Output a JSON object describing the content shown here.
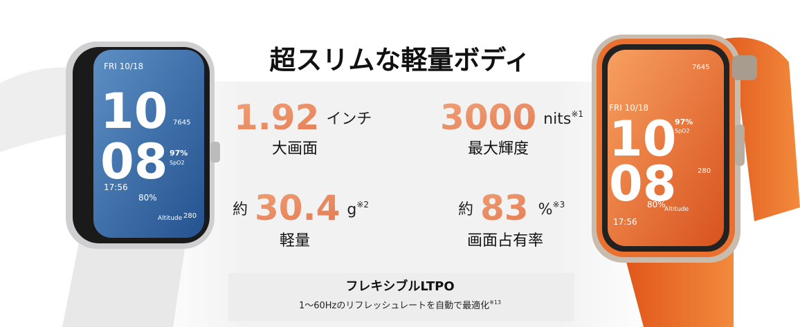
{
  "header": {
    "title": "超スリムな軽量ボディ"
  },
  "specs": [
    {
      "prefix": null,
      "value": "1.92",
      "unit": "インチ",
      "note": null,
      "label": "大画面"
    },
    {
      "prefix": null,
      "value": "3000",
      "unit": "nits",
      "note": "※1",
      "label": "最大輝度"
    },
    {
      "prefix": "約",
      "value": "30.4",
      "unit": "g",
      "note": "※2",
      "label": "軽量"
    },
    {
      "prefix": "約",
      "value": "83",
      "unit": "%",
      "note": "※3",
      "label": "画面占有率"
    }
  ],
  "footer": {
    "title": "フレキシブルLTPO",
    "text": "1〜60Hzのリフレッシュレートを自動で最適化",
    "note": "※13"
  },
  "watches": [
    {
      "date": "FRI 10/18",
      "hour": "10",
      "minute": "08",
      "spo2": "97%",
      "spo2_label": "SpO2",
      "time": "17:56",
      "battery": "80%",
      "altitude_label": "Altitude",
      "altitude": "280",
      "steps": "7645"
    },
    {
      "date": "FRI 10/18",
      "hour": "10",
      "minute": "08",
      "spo2": "97%",
      "spo2_label": "SpO2",
      "time": "17:56",
      "battery": "80%",
      "altitude_label": "Altitude",
      "altitude": "280",
      "steps": "7645"
    }
  ]
}
